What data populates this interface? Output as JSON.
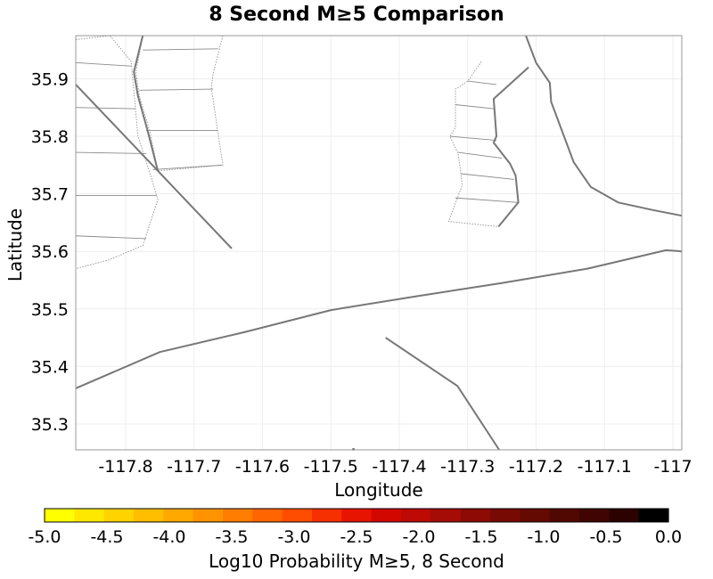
{
  "chart_data": {
    "type": "map",
    "title": "8 Second M≥5 Comparison",
    "xlabel": "Longitude",
    "ylabel": "Latitude",
    "xlim": [
      -117.873,
      -116.987
    ],
    "ylim": [
      35.255,
      35.975
    ],
    "x_ticks": [
      -117.8,
      -117.7,
      -117.6,
      -117.5,
      -117.4,
      -117.3,
      -117.2,
      -117.1,
      -117.0
    ],
    "x_tick_labels": [
      "-117.8",
      "-117.7",
      "-117.6",
      "-117.5",
      "-117.4",
      "-117.3",
      "-117.2",
      "-117.1",
      "-117"
    ],
    "y_ticks": [
      35.3,
      35.4,
      35.5,
      35.6,
      35.7,
      35.8,
      35.9
    ],
    "y_tick_labels": [
      "35.3",
      "35.4",
      "35.5",
      "35.6",
      "35.7",
      "35.8",
      "35.9"
    ],
    "grid": true,
    "faults": [
      {
        "name": "",
        "style": "solid",
        "points": [
          [
            -117.873,
            35.89
          ],
          [
            -117.645,
            35.605
          ]
        ]
      },
      {
        "name": "",
        "style": "solid",
        "points": [
          [
            -117.775,
            35.975
          ],
          [
            -117.788,
            35.912
          ],
          [
            -117.782,
            35.87
          ],
          [
            -117.768,
            35.81
          ],
          [
            -117.753,
            35.74
          ]
        ]
      },
      {
        "name": "",
        "style": "solid",
        "points": [
          [
            -117.873,
            35.362
          ],
          [
            -117.75,
            35.425
          ],
          [
            -117.625,
            35.46
          ],
          [
            -117.5,
            35.498
          ],
          [
            -117.375,
            35.522
          ],
          [
            -117.25,
            35.545
          ],
          [
            -117.125,
            35.57
          ],
          [
            -117.01,
            35.602
          ],
          [
            -116.987,
            35.6
          ]
        ]
      },
      {
        "name": "",
        "style": "solid",
        "points": [
          [
            -117.42,
            35.45
          ],
          [
            -117.315,
            35.366
          ],
          [
            -117.254,
            35.255
          ]
        ]
      },
      {
        "name": "",
        "style": "solid",
        "points": [
          [
            -117.215,
            35.975
          ],
          [
            -117.2,
            35.928
          ],
          [
            -117.18,
            35.893
          ],
          [
            -117.178,
            35.86
          ],
          [
            -117.145,
            35.755
          ],
          [
            -117.12,
            35.712
          ],
          [
            -117.08,
            35.685
          ],
          [
            -117.03,
            35.672
          ],
          [
            -116.987,
            35.662
          ]
        ]
      },
      {
        "name": "",
        "style": "solid",
        "points": [
          [
            -117.211,
            35.92
          ],
          [
            -117.262,
            35.865
          ],
          [
            -117.258,
            35.8
          ],
          [
            -117.262,
            35.789
          ],
          [
            -117.238,
            35.752
          ],
          [
            -117.23,
            35.732
          ],
          [
            -117.226,
            35.685
          ],
          [
            -117.255,
            35.643
          ]
        ]
      }
    ],
    "fault_surfaces": [
      {
        "name": "",
        "outline": [
          [
            -117.873,
            35.968
          ],
          [
            -117.823,
            35.975
          ],
          [
            -117.792,
            35.93
          ],
          [
            -117.782,
            35.8
          ],
          [
            -117.763,
            35.73
          ],
          [
            -117.753,
            35.69
          ],
          [
            -117.775,
            35.61
          ],
          [
            -117.825,
            35.585
          ],
          [
            -117.873,
            35.57
          ]
        ],
        "rungs": [
          [
            [
              -117.873,
              35.928
            ],
            [
              -117.792,
              35.922
            ]
          ],
          [
            [
              -117.873,
              35.85
            ],
            [
              -117.785,
              35.848
            ]
          ],
          [
            [
              -117.873,
              35.772
            ],
            [
              -117.77,
              35.77
            ]
          ],
          [
            [
              -117.873,
              35.697
            ],
            [
              -117.755,
              35.697
            ]
          ],
          [
            [
              -117.873,
              35.627
            ],
            [
              -117.77,
              35.622
            ]
          ]
        ]
      },
      {
        "name": "",
        "outline": [
          [
            -117.658,
            35.975
          ],
          [
            -117.672,
            35.91
          ],
          [
            -117.675,
            35.885
          ],
          [
            -117.658,
            35.75
          ],
          [
            -117.753,
            35.74
          ],
          [
            -117.765,
            35.81
          ],
          [
            -117.78,
            35.87
          ],
          [
            -117.785,
            35.912
          ],
          [
            -117.775,
            35.975
          ]
        ],
        "rungs": [
          [
            [
              -117.775,
              35.95
            ],
            [
              -117.665,
              35.952
            ]
          ],
          [
            [
              -117.78,
              35.88
            ],
            [
              -117.672,
              35.882
            ]
          ],
          [
            [
              -117.77,
              35.81
            ],
            [
              -117.665,
              35.81
            ]
          ],
          [
            [
              -117.76,
              35.742
            ],
            [
              -117.659,
              35.75
            ]
          ]
        ]
      },
      {
        "name": "",
        "outline": [
          [
            -117.28,
            35.93
          ],
          [
            -117.3,
            35.896
          ],
          [
            -117.318,
            35.882
          ],
          [
            -117.318,
            35.815
          ],
          [
            -117.326,
            35.8
          ],
          [
            -117.314,
            35.77
          ],
          [
            -117.31,
            35.735
          ],
          [
            -117.308,
            35.715
          ],
          [
            -117.328,
            35.652
          ],
          [
            -117.255,
            35.643
          ],
          [
            -117.226,
            35.685
          ],
          [
            -117.23,
            35.732
          ],
          [
            -117.238,
            35.752
          ],
          [
            -117.262,
            35.789
          ],
          [
            -117.258,
            35.8
          ],
          [
            -117.262,
            35.865
          ],
          [
            -117.211,
            35.92
          ]
        ],
        "rungs": [
          [
            [
              -117.3,
              35.896
            ],
            [
              -117.258,
              35.89
            ]
          ],
          [
            [
              -117.318,
              35.855
            ],
            [
              -117.262,
              35.848
            ]
          ],
          [
            [
              -117.326,
              35.8
            ],
            [
              -117.258,
              35.793
            ]
          ],
          [
            [
              -117.314,
              35.772
            ],
            [
              -117.25,
              35.762
            ]
          ],
          [
            [
              -117.31,
              35.735
            ],
            [
              -117.232,
              35.725
            ]
          ],
          [
            [
              -117.318,
              35.693
            ],
            [
              -117.226,
              35.685
            ]
          ]
        ]
      }
    ],
    "markers": [
      [
        -117.467,
        35.256
      ]
    ],
    "colorbar": {
      "label": "Log10 Probability M≥5, 8 Second",
      "min": -5.0,
      "max": 0.0,
      "tick_values": [
        -5.0,
        -4.5,
        -4.0,
        -3.5,
        -3.0,
        -2.5,
        -2.0,
        -1.5,
        -1.0,
        -0.5,
        0.0
      ],
      "tick_labels": [
        "-5.0",
        "-4.5",
        "-4.0",
        "-3.5",
        "-3.0",
        "-2.5",
        "-2.0",
        "-1.5",
        "-1.0",
        "-0.5",
        "0.0"
      ],
      "colors": [
        "#ffff00",
        "#ffe800",
        "#ffd300",
        "#ffbe00",
        "#ffa800",
        "#ff9300",
        "#ff7d00",
        "#ff6500",
        "#ff4d00",
        "#f73000",
        "#e61400",
        "#d20800",
        "#bd0a04",
        "#a50c06",
        "#8e0b05",
        "#780a04",
        "#650903",
        "#520802",
        "#400502",
        "#2c0201",
        "#000000"
      ]
    }
  }
}
